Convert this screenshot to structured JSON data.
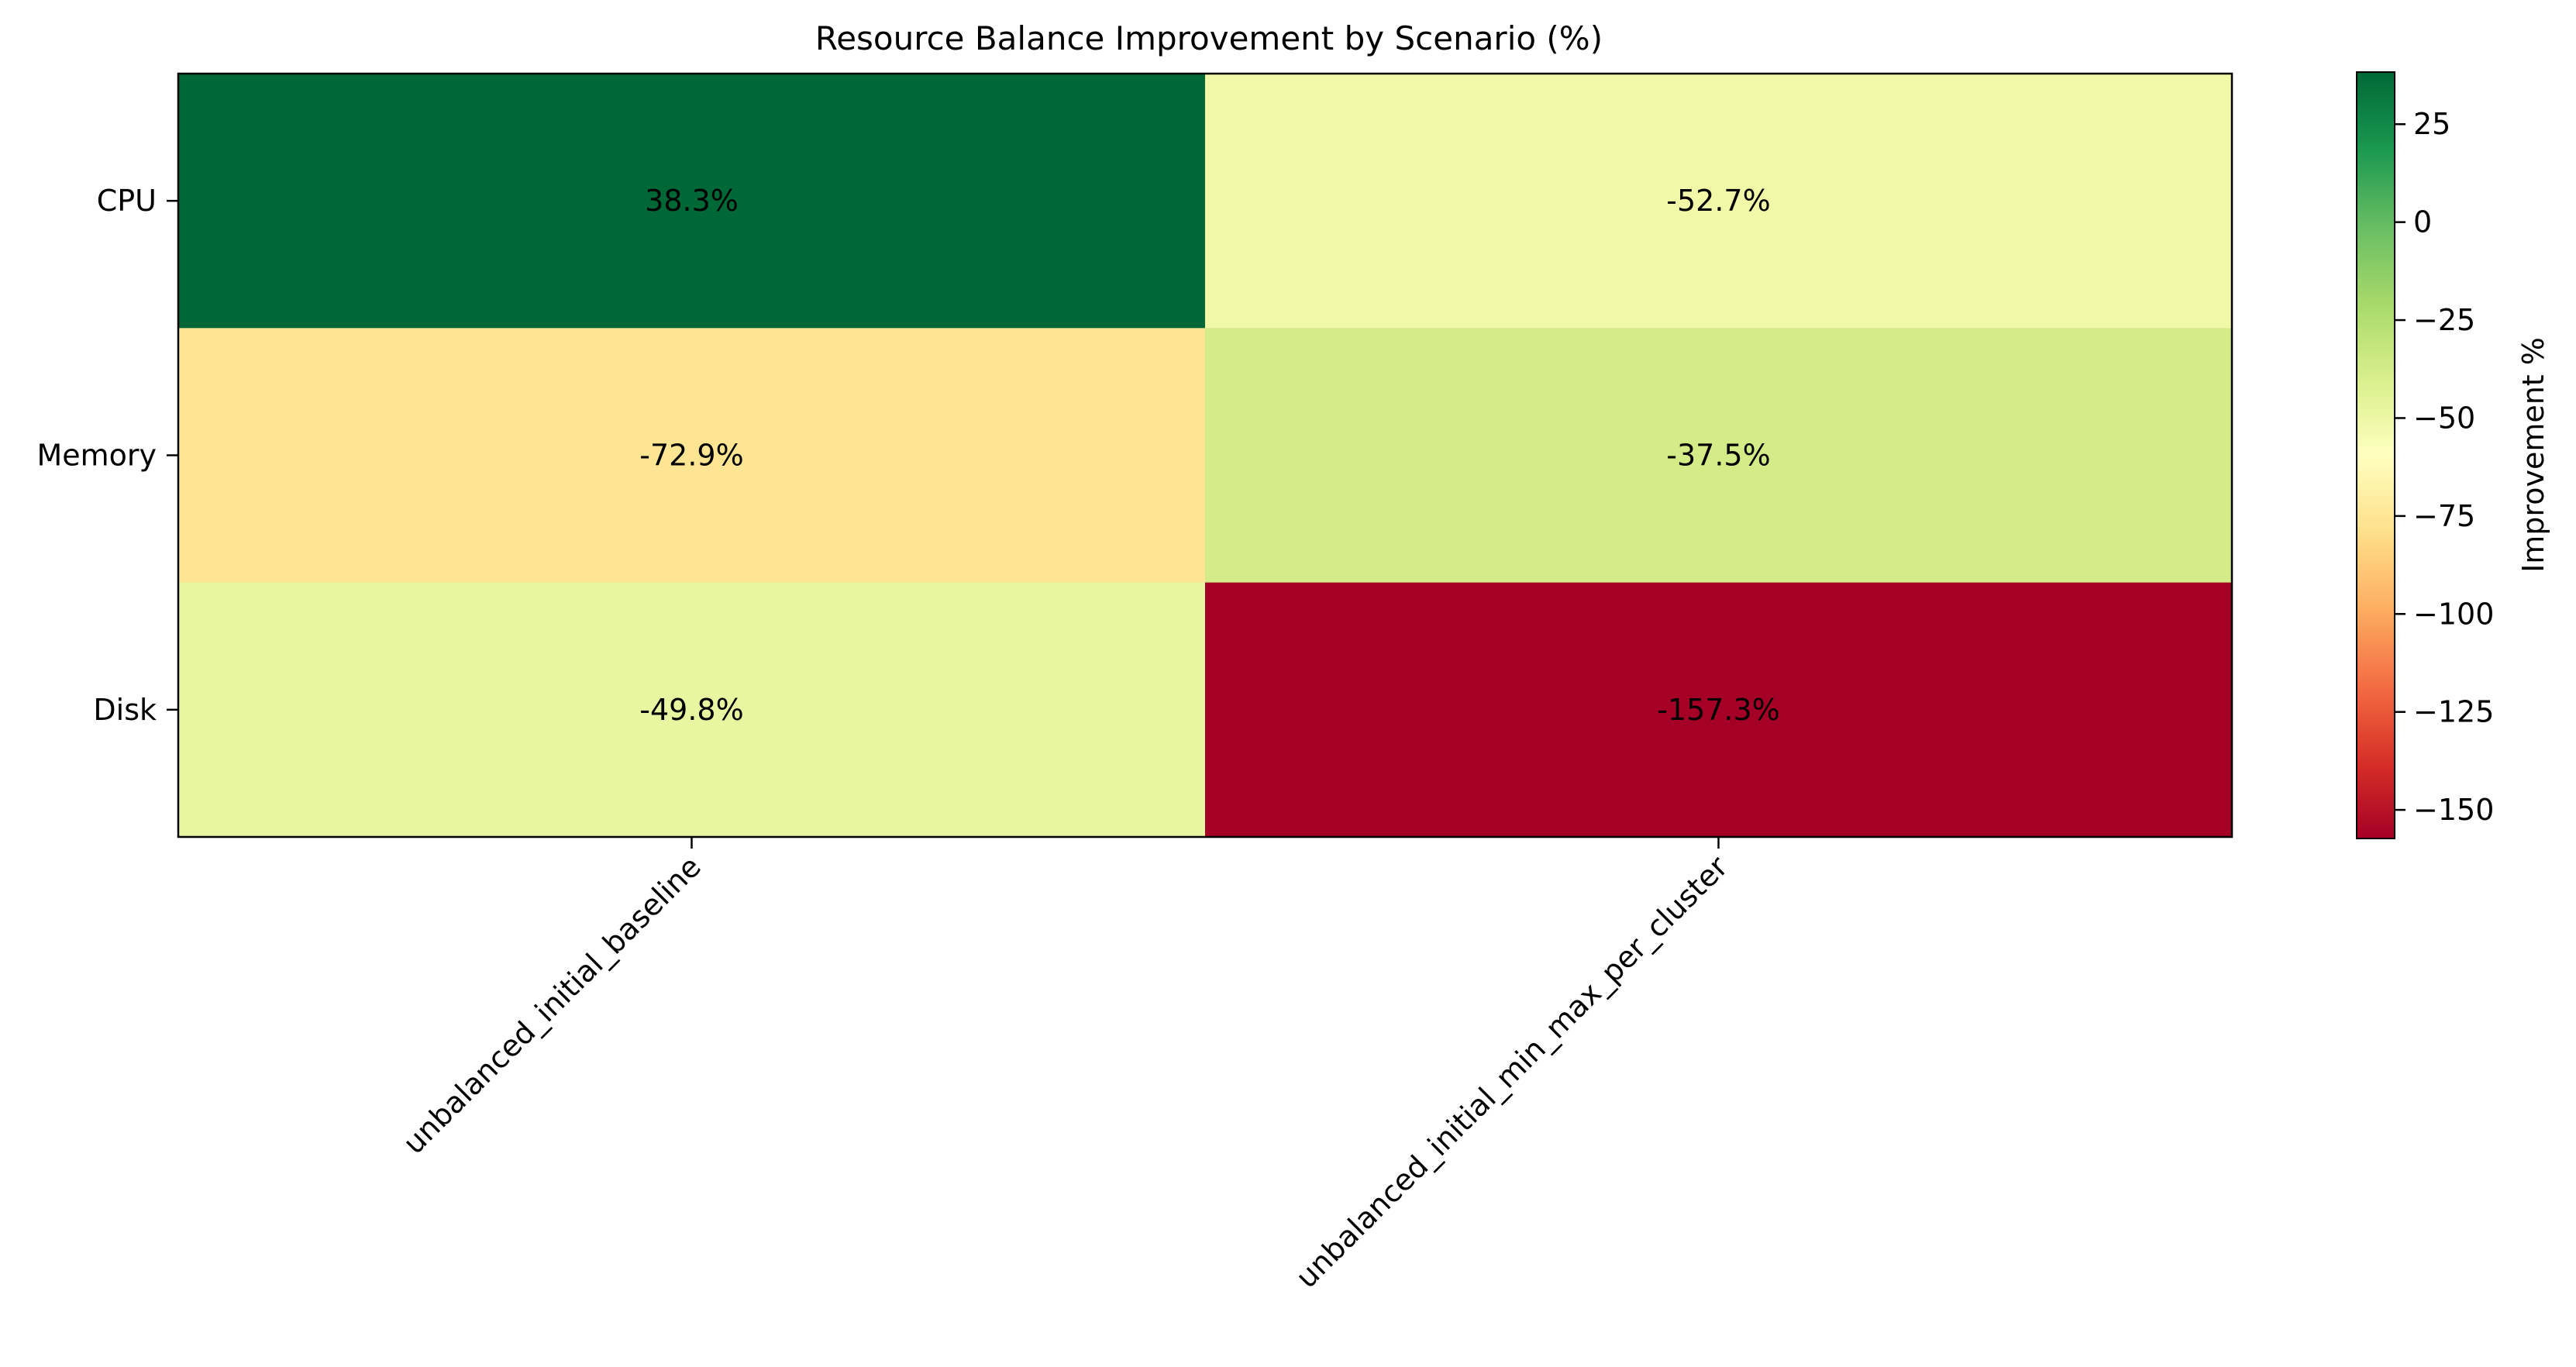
{
  "chart_data": {
    "type": "heatmap",
    "title": "Resource Balance Improvement by Scenario (%)",
    "x_categories": [
      "unbalanced_initial_baseline",
      "unbalanced_initial_min_max_per_cluster"
    ],
    "y_categories": [
      "CPU",
      "Memory",
      "Disk"
    ],
    "values": [
      [
        38.3,
        -52.7
      ],
      [
        -72.9,
        -37.5
      ],
      [
        -49.8,
        -157.3
      ]
    ],
    "cell_labels": [
      [
        "38.3%",
        "-52.7%"
      ],
      [
        "-72.9%",
        "-37.5%"
      ],
      [
        "-49.8%",
        "-157.3%"
      ]
    ],
    "colormap": "RdYlGn",
    "vmin": -157.3,
    "vmax": 38.3,
    "colorbar": {
      "label": "Improvement %",
      "ticks": [
        25,
        0,
        -25,
        -50,
        -75,
        -100,
        -125,
        -150
      ],
      "tick_labels": [
        "25",
        "0",
        "−25",
        "−50",
        "−75",
        "−100",
        "−125",
        "−150"
      ]
    },
    "colors": {
      "38.3": "#006837",
      "-52.7": "#f1f9a9",
      "-72.9": "#fde593",
      "-37.5": "#d3ec87",
      "-49.8": "#e9f6a1",
      "-157.3": "#a50026"
    }
  }
}
